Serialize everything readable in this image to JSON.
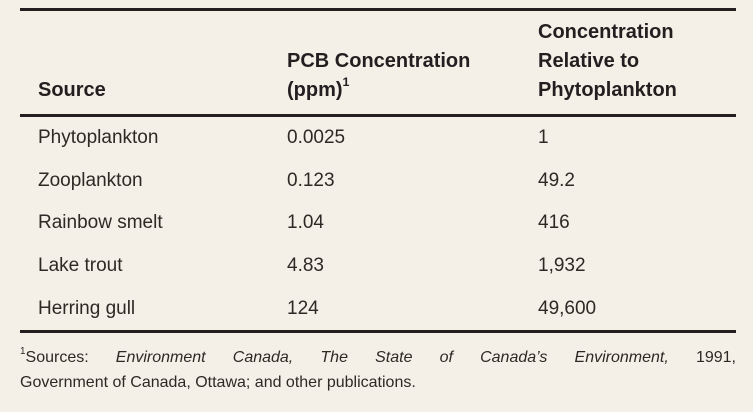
{
  "table": {
    "header": {
      "source": "Source",
      "pcb_line1": "PCB Concentration",
      "pcb_line2": "(ppm)",
      "pcb_footnote_marker": "1",
      "relative_line1": "Concentration",
      "relative_line2": "Relative to",
      "relative_line3": "Phytoplankton"
    },
    "rows": [
      {
        "source": "Phytoplankton",
        "pcb_ppm": "0.0025",
        "relative": "1"
      },
      {
        "source": "Zooplankton",
        "pcb_ppm": "0.123",
        "relative": "49.2"
      },
      {
        "source": "Rainbow smelt",
        "pcb_ppm": "1.04",
        "relative": "416"
      },
      {
        "source": "Lake trout",
        "pcb_ppm": "4.83",
        "relative": "1,932"
      },
      {
        "source": "Herring gull",
        "pcb_ppm": "124",
        "relative": "49,600"
      }
    ]
  },
  "footnote": {
    "marker": "1",
    "lead": "Sources: ",
    "italic_title": "Environment Canada, The State of Canada’s Environment,",
    "after_italic": " 1991,",
    "line2": "Government of Canada, Ottawa; and other publications."
  },
  "colors": {
    "background": "#f4f0e7",
    "rule": "#231f20",
    "text": "#2d2925"
  },
  "chart_data": {
    "type": "table",
    "columns": [
      "Source",
      "PCB Concentration (ppm)",
      "Concentration Relative to Phytoplankton"
    ],
    "rows": [
      [
        "Phytoplankton",
        0.0025,
        1
      ],
      [
        "Zooplankton",
        0.123,
        49.2
      ],
      [
        "Rainbow smelt",
        1.04,
        416
      ],
      [
        "Lake trout",
        4.83,
        1932
      ],
      [
        "Herring gull",
        124,
        49600
      ]
    ],
    "footnote": "Sources: Environment Canada, The State of Canada’s Environment, 1991, Government of Canada, Ottawa; and other publications."
  }
}
